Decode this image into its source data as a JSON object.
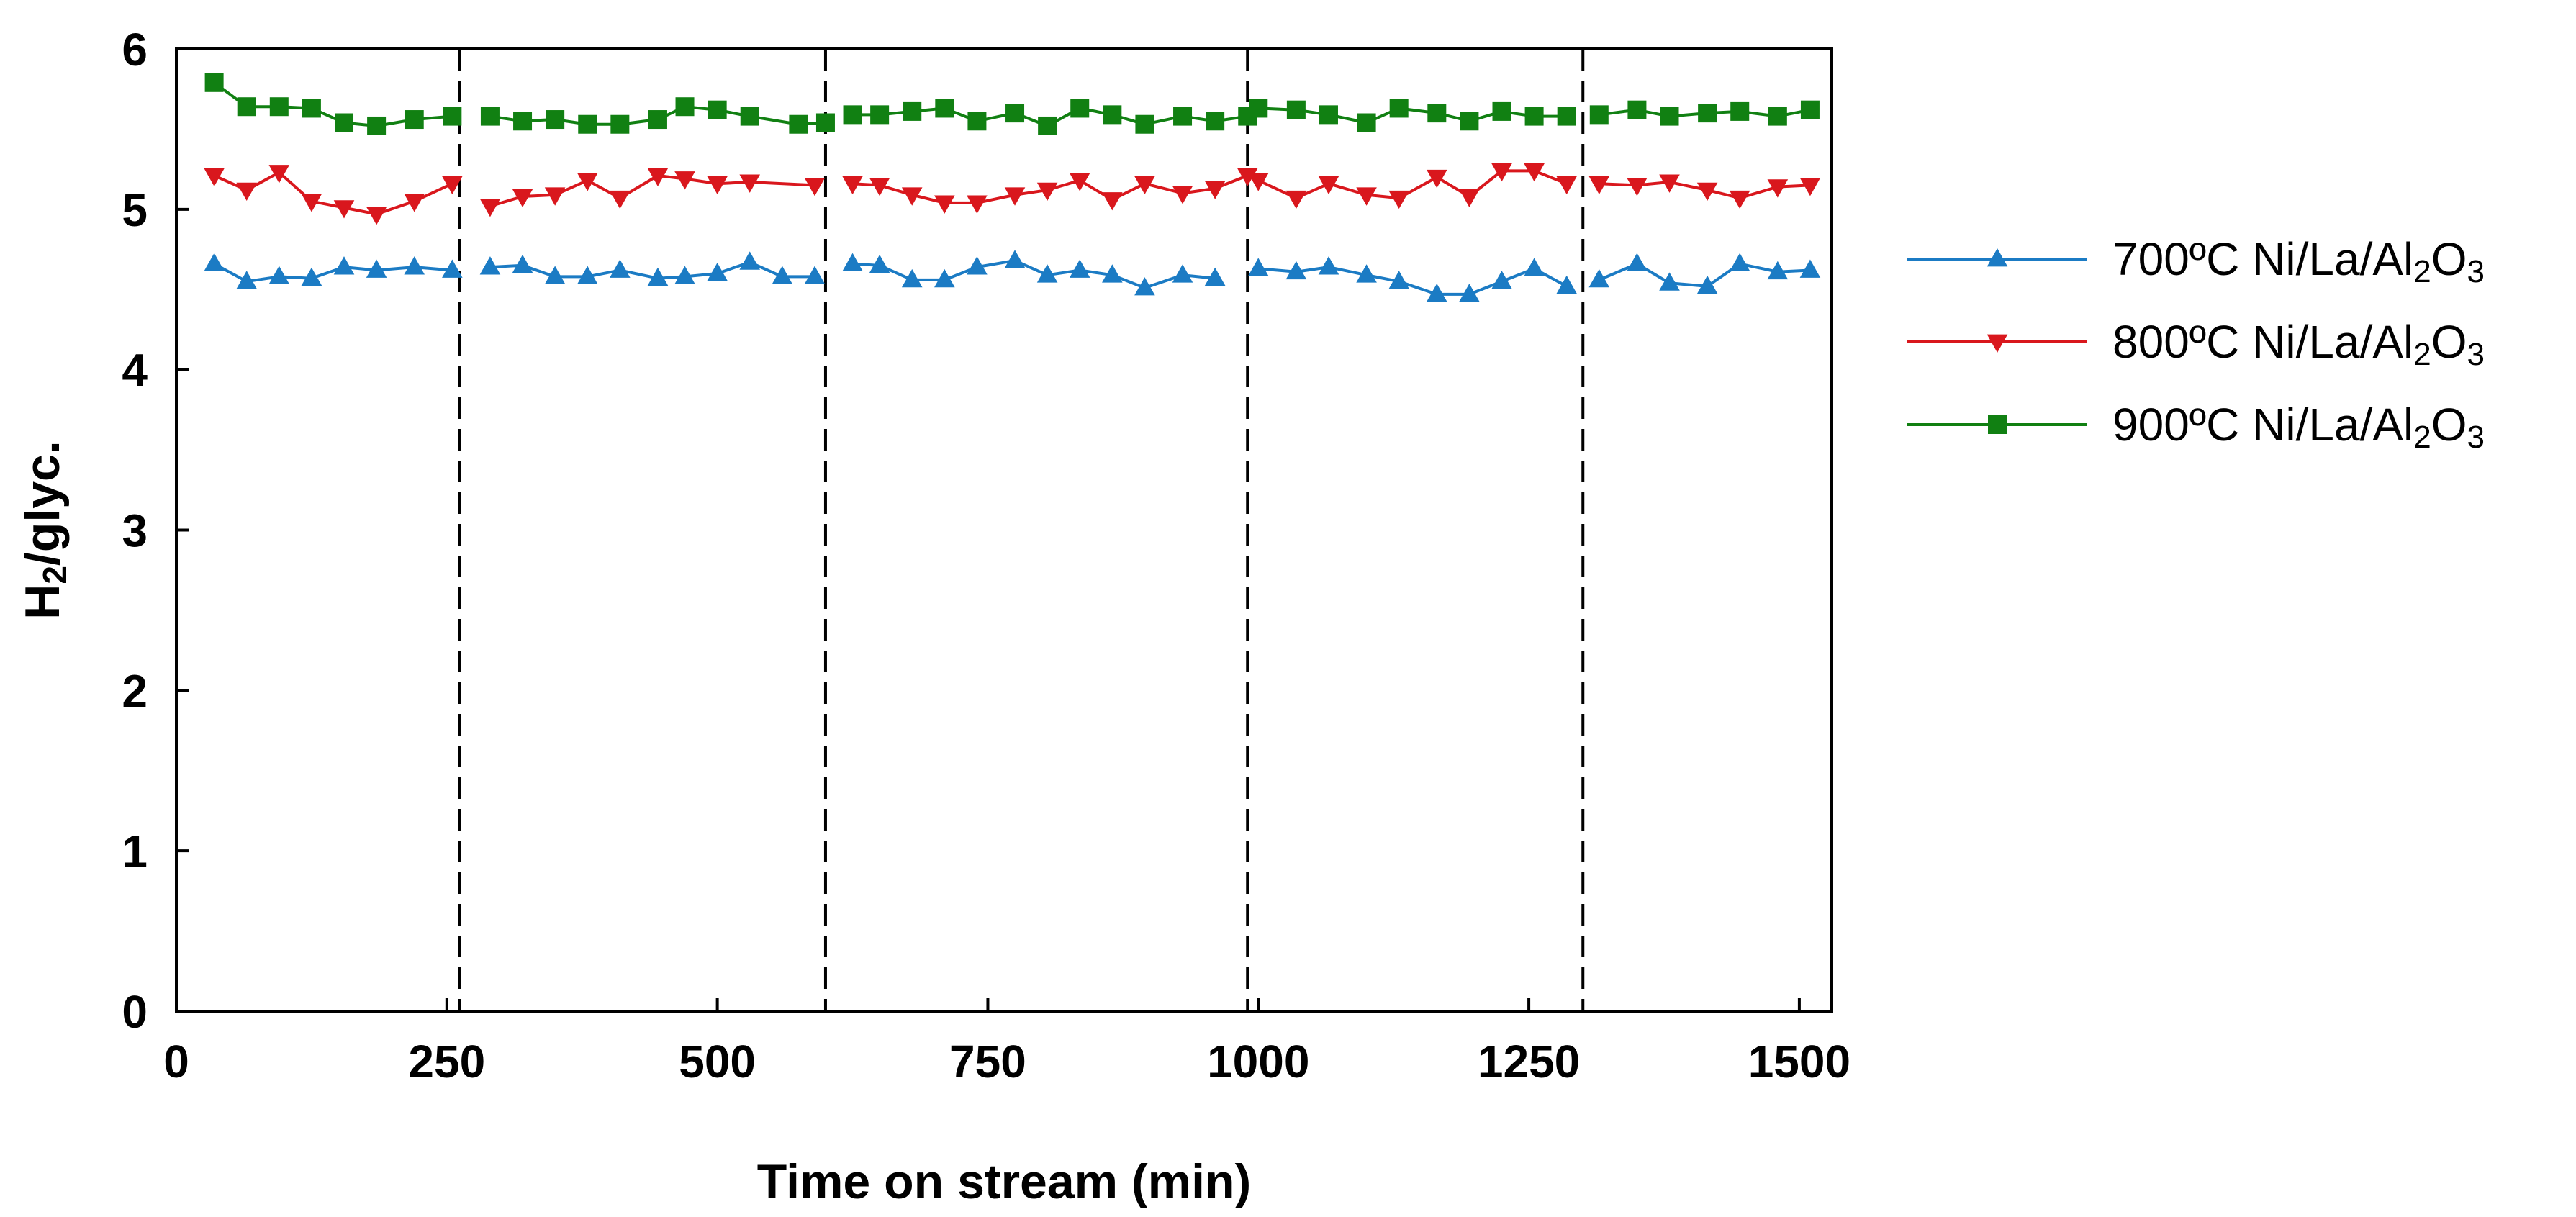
{
  "chart_data": {
    "type": "line",
    "title": "",
    "xlabel": "Time on stream (min)",
    "ylabel": {
      "main": "H",
      "sub": "2",
      "rest": "/glyc."
    },
    "xlim": [
      0,
      1530
    ],
    "ylim": [
      0,
      6
    ],
    "xticks": [
      0,
      250,
      500,
      750,
      1000,
      1250,
      1500
    ],
    "yticks": [
      0,
      1,
      2,
      3,
      4,
      5,
      6
    ],
    "grid": false,
    "legend_position": "right",
    "cycle_boundaries": [
      262,
      600,
      990,
      1300
    ],
    "series": [
      {
        "name": {
          "pre": "700ºC Ni/La/Al",
          "sub1": "2",
          "mid": "O",
          "sub2": "3"
        },
        "color": "#1b7bc4",
        "marker": "triangle-up",
        "segments": [
          [
            [
              35,
              4.66
            ],
            [
              65,
              4.55
            ],
            [
              95,
              4.58
            ],
            [
              125,
              4.57
            ],
            [
              155,
              4.64
            ],
            [
              185,
              4.62
            ],
            [
              220,
              4.64
            ],
            [
              255,
              4.62
            ]
          ],
          [
            [
              290,
              4.64
            ],
            [
              320,
              4.65
            ],
            [
              350,
              4.58
            ],
            [
              380,
              4.58
            ],
            [
              410,
              4.62
            ],
            [
              445,
              4.57
            ],
            [
              470,
              4.58
            ],
            [
              500,
              4.6
            ],
            [
              530,
              4.67
            ],
            [
              560,
              4.58
            ],
            [
              590,
              4.58
            ]
          ],
          [
            [
              625,
              4.66
            ],
            [
              650,
              4.65
            ],
            [
              680,
              4.56
            ],
            [
              710,
              4.56
            ],
            [
              740,
              4.64
            ],
            [
              775,
              4.68
            ],
            [
              805,
              4.59
            ],
            [
              835,
              4.62
            ],
            [
              865,
              4.59
            ],
            [
              895,
              4.51
            ],
            [
              930,
              4.59
            ],
            [
              960,
              4.57
            ]
          ],
          [
            [
              1000,
              4.63
            ],
            [
              1035,
              4.61
            ],
            [
              1065,
              4.64
            ],
            [
              1100,
              4.59
            ],
            [
              1130,
              4.55
            ],
            [
              1165,
              4.47
            ],
            [
              1195,
              4.47
            ],
            [
              1225,
              4.55
            ],
            [
              1255,
              4.63
            ],
            [
              1285,
              4.52
            ]
          ],
          [
            [
              1315,
              4.56
            ],
            [
              1350,
              4.66
            ],
            [
              1380,
              4.54
            ],
            [
              1415,
              4.52
            ],
            [
              1445,
              4.66
            ],
            [
              1480,
              4.61
            ],
            [
              1510,
              4.62
            ]
          ]
        ]
      },
      {
        "name": {
          "pre": "800ºC Ni/La/Al",
          "sub1": "2",
          "mid": "O",
          "sub2": "3"
        },
        "color": "#d9171d",
        "marker": "triangle-down",
        "segments": [
          [
            [
              35,
              5.21
            ],
            [
              65,
              5.12
            ],
            [
              95,
              5.23
            ],
            [
              125,
              5.05
            ],
            [
              155,
              5.01
            ],
            [
              185,
              4.97
            ],
            [
              220,
              5.05
            ],
            [
              255,
              5.16
            ]
          ],
          [
            [
              290,
              5.02
            ],
            [
              320,
              5.08
            ],
            [
              350,
              5.09
            ],
            [
              380,
              5.18
            ],
            [
              410,
              5.07
            ],
            [
              445,
              5.21
            ],
            [
              470,
              5.19
            ],
            [
              500,
              5.16
            ],
            [
              530,
              5.17
            ],
            [
              590,
              5.15
            ]
          ],
          [
            [
              625,
              5.16
            ],
            [
              650,
              5.15
            ],
            [
              680,
              5.09
            ],
            [
              710,
              5.04
            ],
            [
              740,
              5.04
            ],
            [
              775,
              5.09
            ],
            [
              805,
              5.12
            ],
            [
              835,
              5.18
            ],
            [
              865,
              5.06
            ],
            [
              895,
              5.16
            ],
            [
              930,
              5.1
            ],
            [
              960,
              5.13
            ],
            [
              990,
              5.21
            ]
          ],
          [
            [
              1000,
              5.18
            ],
            [
              1035,
              5.07
            ],
            [
              1065,
              5.16
            ],
            [
              1100,
              5.09
            ],
            [
              1130,
              5.07
            ],
            [
              1165,
              5.2
            ],
            [
              1195,
              5.08
            ],
            [
              1225,
              5.24
            ],
            [
              1255,
              5.24
            ],
            [
              1285,
              5.16
            ]
          ],
          [
            [
              1315,
              5.16
            ],
            [
              1350,
              5.15
            ],
            [
              1380,
              5.17
            ],
            [
              1415,
              5.12
            ],
            [
              1445,
              5.07
            ],
            [
              1480,
              5.14
            ],
            [
              1510,
              5.15
            ]
          ]
        ]
      },
      {
        "name": {
          "pre": "900ºC Ni/La/Al",
          "sub1": "2",
          "mid": "O",
          "sub2": "3"
        },
        "color": "#118012",
        "marker": "square",
        "segments": [
          [
            [
              35,
              5.79
            ],
            [
              65,
              5.64
            ],
            [
              95,
              5.64
            ],
            [
              125,
              5.63
            ],
            [
              155,
              5.54
            ],
            [
              185,
              5.52
            ],
            [
              220,
              5.56
            ],
            [
              255,
              5.58
            ]
          ],
          [
            [
              290,
              5.58
            ],
            [
              320,
              5.55
            ],
            [
              350,
              5.56
            ],
            [
              380,
              5.53
            ],
            [
              410,
              5.53
            ],
            [
              445,
              5.56
            ],
            [
              470,
              5.64
            ],
            [
              500,
              5.62
            ],
            [
              530,
              5.58
            ],
            [
              575,
              5.53
            ],
            [
              600,
              5.54
            ]
          ],
          [
            [
              625,
              5.59
            ],
            [
              650,
              5.59
            ],
            [
              680,
              5.61
            ],
            [
              710,
              5.63
            ],
            [
              740,
              5.55
            ],
            [
              775,
              5.6
            ],
            [
              805,
              5.52
            ],
            [
              835,
              5.63
            ],
            [
              865,
              5.59
            ],
            [
              895,
              5.53
            ],
            [
              930,
              5.58
            ],
            [
              960,
              5.55
            ],
            [
              990,
              5.58
            ]
          ],
          [
            [
              1000,
              5.63
            ],
            [
              1035,
              5.62
            ],
            [
              1065,
              5.59
            ],
            [
              1100,
              5.54
            ],
            [
              1130,
              5.63
            ],
            [
              1165,
              5.6
            ],
            [
              1195,
              5.55
            ],
            [
              1225,
              5.61
            ],
            [
              1255,
              5.58
            ],
            [
              1285,
              5.58
            ]
          ],
          [
            [
              1315,
              5.59
            ],
            [
              1350,
              5.62
            ],
            [
              1380,
              5.58
            ],
            [
              1415,
              5.6
            ],
            [
              1445,
              5.61
            ],
            [
              1480,
              5.58
            ],
            [
              1510,
              5.62
            ]
          ]
        ]
      }
    ]
  }
}
